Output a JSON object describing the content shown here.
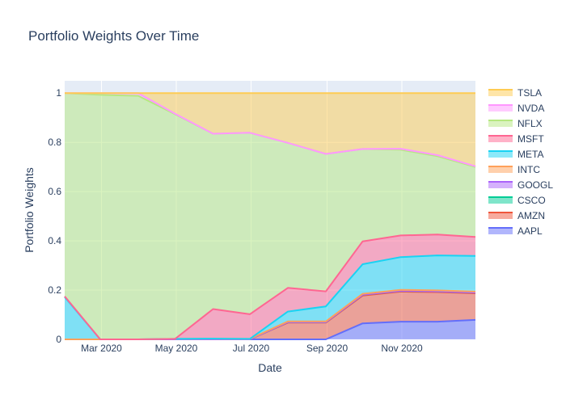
{
  "chart_data": {
    "type": "area",
    "stacked": true,
    "title": "Portfolio Weights Over Time",
    "xlabel": "Date",
    "ylabel": "Portfolio Weights",
    "xlim": [
      "2020-01-31",
      "2020-12-31"
    ],
    "ylim": [
      0,
      1.05
    ],
    "x_ticks": [
      {
        "date": "2020-03-01",
        "label": "Mar 2020"
      },
      {
        "date": "2020-05-01",
        "label": "May 2020"
      },
      {
        "date": "2020-07-01",
        "label": "Jul 2020"
      },
      {
        "date": "2020-09-01",
        "label": "Sep 2020"
      },
      {
        "date": "2020-11-01",
        "label": "Nov 2020"
      }
    ],
    "y_ticks": [
      {
        "value": 0,
        "label": "0"
      },
      {
        "value": 0.2,
        "label": "0.2"
      },
      {
        "value": 0.4,
        "label": "0.4"
      },
      {
        "value": 0.6,
        "label": "0.6"
      },
      {
        "value": 0.8,
        "label": "0.8"
      },
      {
        "value": 1,
        "label": "1"
      }
    ],
    "grid": true,
    "legend_position": "right",
    "x": [
      "2020-01-31",
      "2020-02-29",
      "2020-03-31",
      "2020-04-30",
      "2020-05-31",
      "2020-06-30",
      "2020-07-31",
      "2020-08-31",
      "2020-09-30",
      "2020-10-31",
      "2020-11-30",
      "2020-12-31"
    ],
    "series": [
      {
        "name": "AAPL",
        "color": "#636efa",
        "values": [
          0,
          0,
          0,
          0,
          0,
          0,
          0,
          0,
          0.065,
          0.072,
          0.072,
          0.079
        ]
      },
      {
        "name": "AMZN",
        "color": "#ef553b",
        "values": [
          0,
          0,
          0,
          0,
          0,
          0,
          0.068,
          0.068,
          0.113,
          0.122,
          0.12,
          0.108
        ]
      },
      {
        "name": "CSCO",
        "color": "#00cc96",
        "values": [
          0,
          0,
          0,
          0,
          0,
          0,
          0.002,
          0.002,
          0.003,
          0.003,
          0.003,
          0.003
        ]
      },
      {
        "name": "GOOGL",
        "color": "#ab63fa",
        "values": [
          0,
          0,
          0,
          0,
          0,
          0,
          0,
          0,
          0,
          0,
          0,
          0
        ]
      },
      {
        "name": "INTC",
        "color": "#ffa15a",
        "values": [
          0,
          0,
          0,
          0.002,
          0.003,
          0.002,
          0.003,
          0.003,
          0.004,
          0.004,
          0.004,
          0.004
        ]
      },
      {
        "name": "META",
        "color": "#19d3f3",
        "values": [
          0.172,
          0,
          0,
          0,
          0,
          0,
          0.04,
          0.061,
          0.12,
          0.133,
          0.142,
          0.145
        ]
      },
      {
        "name": "MSFT",
        "color": "#ff6692",
        "values": [
          0.003,
          0,
          0,
          0,
          0.12,
          0.1,
          0.096,
          0.061,
          0.093,
          0.088,
          0.085,
          0.077
        ]
      },
      {
        "name": "NFLX",
        "color": "#b6e880",
        "values": [
          0.825,
          0.993,
          0.989,
          0.912,
          0.712,
          0.737,
          0.589,
          0.558,
          0.375,
          0.348,
          0.318,
          0.284
        ]
      },
      {
        "name": "NVDA",
        "color": "#ff97ff",
        "values": [
          0,
          0.007,
          0.011,
          0.002,
          0,
          0,
          0,
          0,
          0,
          0.004,
          0.004,
          0.003
        ]
      },
      {
        "name": "TSLA",
        "color": "#fecb52",
        "values": [
          0,
          0,
          0,
          0.084,
          0.165,
          0.161,
          0.202,
          0.247,
          0.227,
          0.226,
          0.252,
          0.297
        ]
      }
    ]
  }
}
